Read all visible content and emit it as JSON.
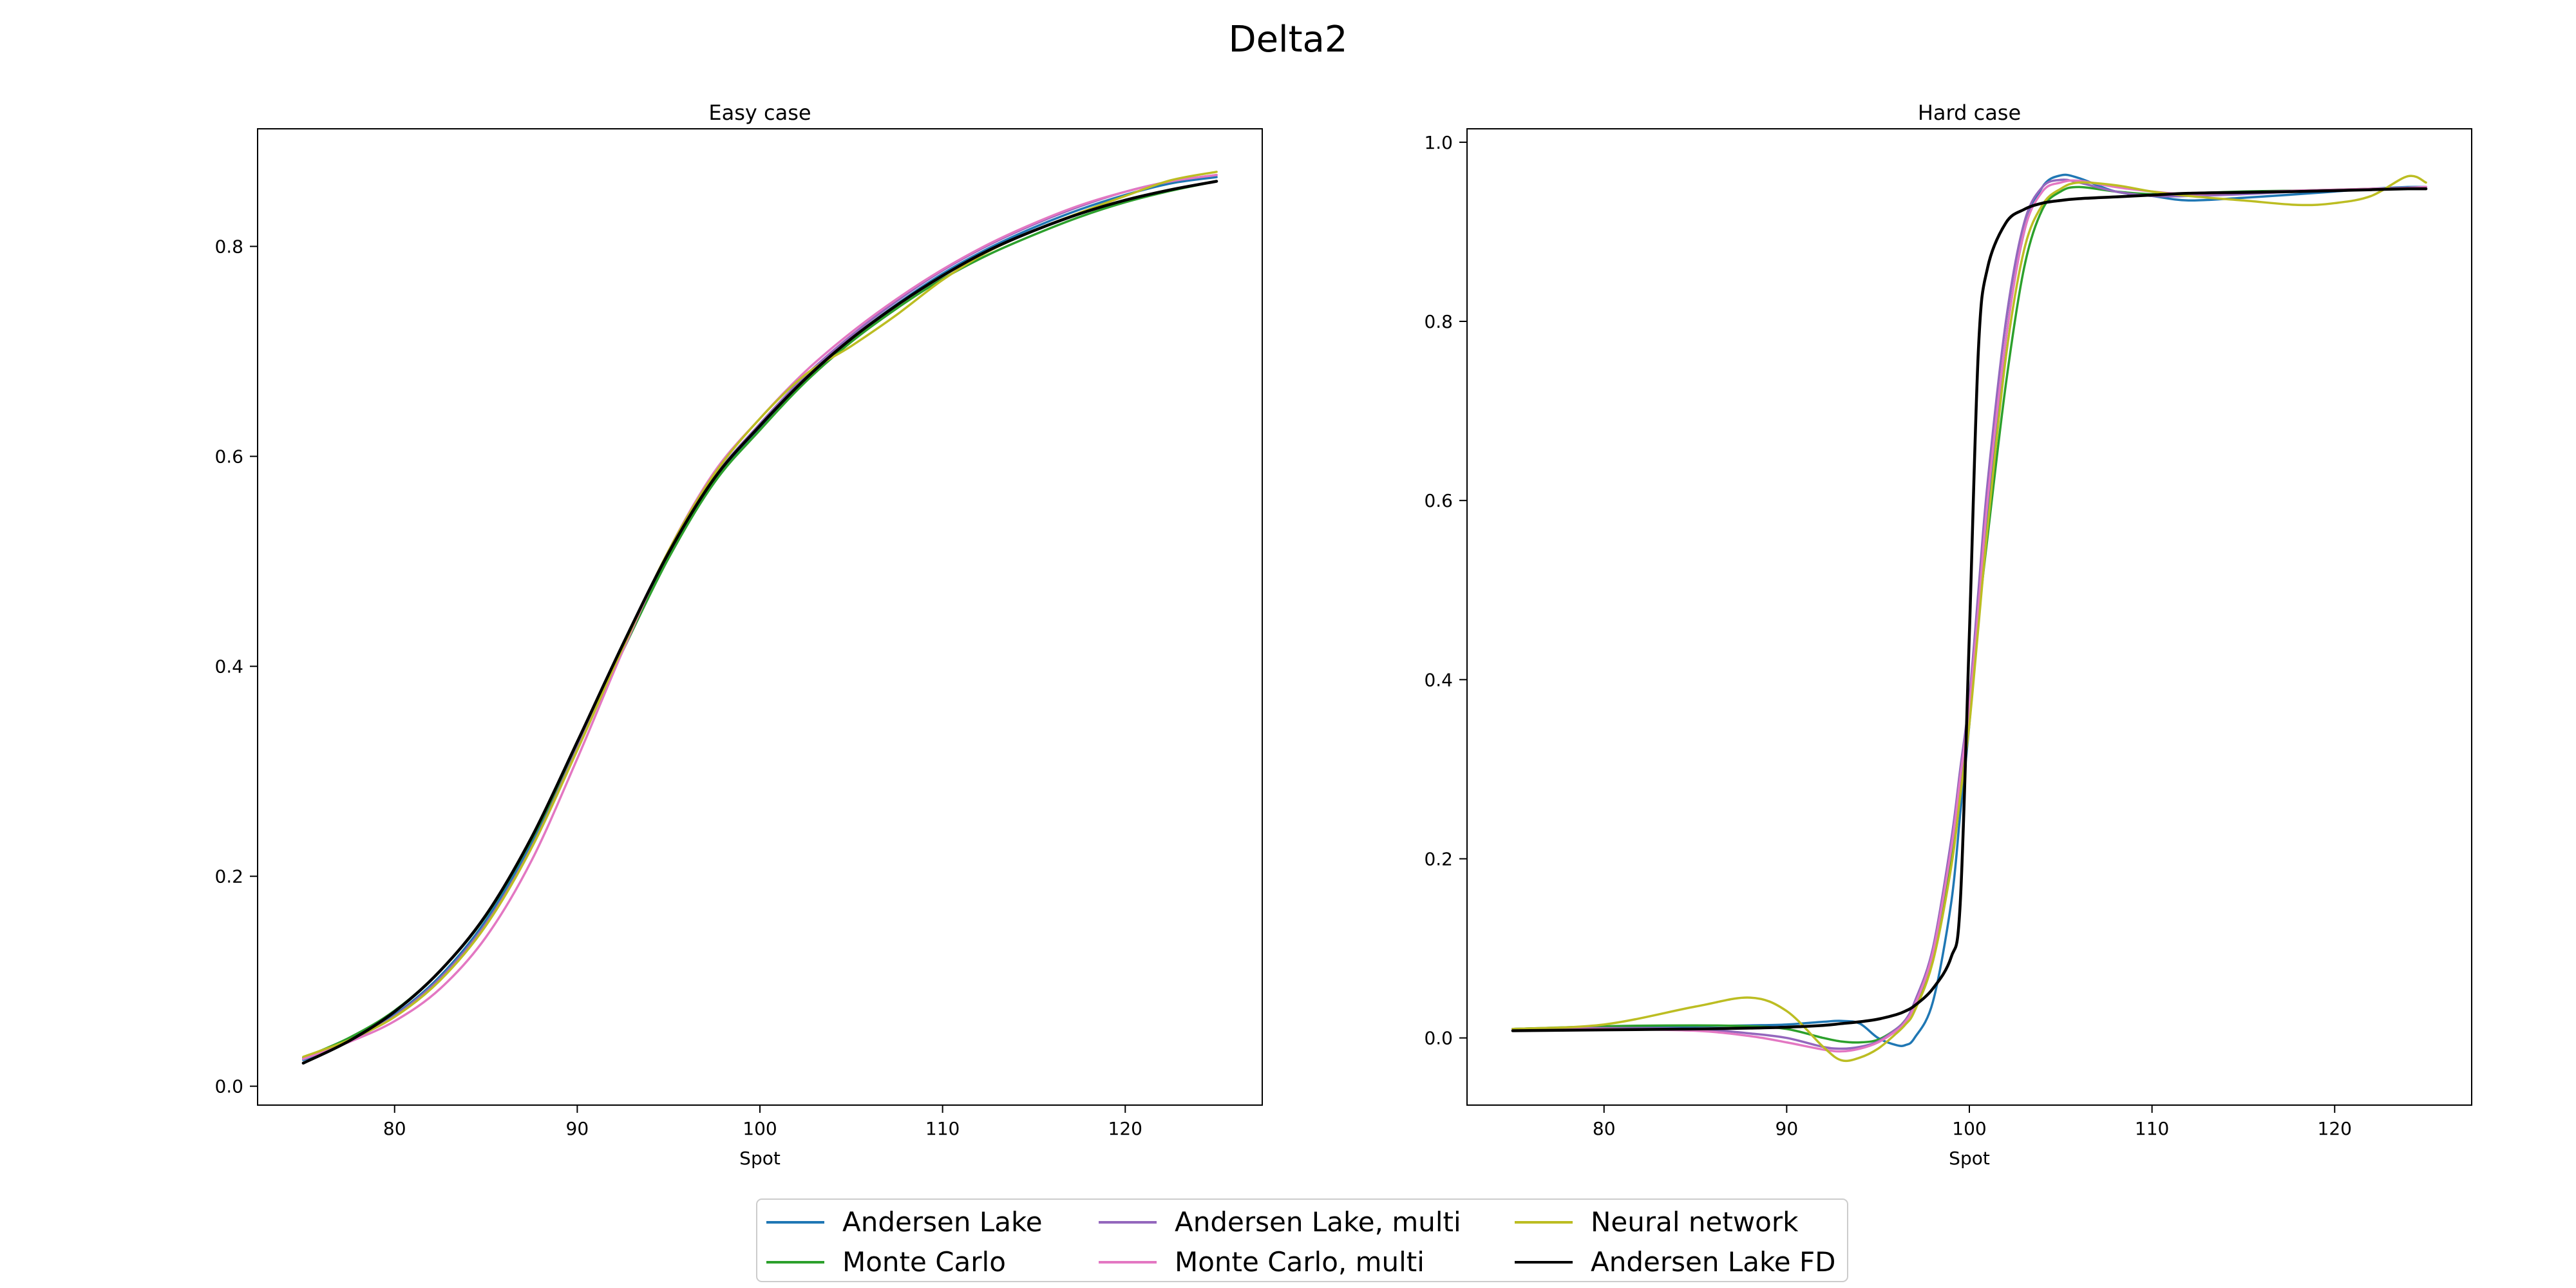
{
  "figure": {
    "suptitle": "Delta2"
  },
  "chart_data": [
    {
      "type": "line",
      "title": "Easy case",
      "xlabel": "Spot",
      "ylabel": "",
      "xlim": [
        72.5,
        127.5
      ],
      "ylim": [
        -0.018,
        0.912
      ],
      "xticks": [
        80,
        90,
        100,
        110,
        120
      ],
      "yticks": [
        0.0,
        0.2,
        0.4,
        0.6,
        0.8
      ],
      "ytick_labels": [
        "0.0",
        "0.2",
        "0.4",
        "0.6",
        "0.8"
      ],
      "x": [
        75,
        77.5,
        80,
        82.5,
        85,
        87.5,
        90,
        92.5,
        95,
        97.5,
        100,
        102.5,
        105,
        107.5,
        110,
        112.5,
        115,
        117.5,
        120,
        122.5,
        125
      ],
      "series": [
        {
          "name": "Andersen Lake",
          "color": "#1f77b4",
          "values": [
            0.025,
            0.043,
            0.068,
            0.105,
            0.158,
            0.232,
            0.325,
            0.418,
            0.505,
            0.575,
            0.627,
            0.674,
            0.712,
            0.745,
            0.774,
            0.798,
            0.818,
            0.835,
            0.849,
            0.86,
            0.866
          ]
        },
        {
          "name": "Monte Carlo",
          "color": "#2ca02c",
          "values": [
            0.027,
            0.046,
            0.072,
            0.11,
            0.162,
            0.235,
            0.323,
            0.415,
            0.503,
            0.575,
            0.625,
            0.671,
            0.709,
            0.741,
            0.769,
            0.792,
            0.811,
            0.828,
            0.842,
            0.853,
            0.862
          ]
        },
        {
          "name": "Andersen Lake, multi",
          "color": "#9467bd",
          "values": [
            0.026,
            0.043,
            0.067,
            0.103,
            0.155,
            0.228,
            0.322,
            0.419,
            0.508,
            0.58,
            0.631,
            0.677,
            0.715,
            0.748,
            0.777,
            0.801,
            0.821,
            0.838,
            0.852,
            0.862,
            0.868
          ]
        },
        {
          "name": "Monte Carlo, multi",
          "color": "#e377c2",
          "values": [
            0.026,
            0.042,
            0.062,
            0.093,
            0.142,
            0.215,
            0.312,
            0.415,
            0.51,
            0.585,
            0.636,
            0.681,
            0.718,
            0.75,
            0.778,
            0.802,
            0.822,
            0.839,
            0.852,
            0.862,
            0.868
          ]
        },
        {
          "name": "Neural network",
          "color": "#bcbd22",
          "values": [
            0.028,
            0.044,
            0.066,
            0.101,
            0.153,
            0.227,
            0.32,
            0.418,
            0.51,
            0.583,
            0.636,
            0.678,
            0.705,
            0.735,
            0.768,
            0.795,
            0.815,
            0.832,
            0.848,
            0.863,
            0.871
          ]
        },
        {
          "name": "Andersen Lake FD",
          "color": "#000000",
          "values": [
            0.022,
            0.043,
            0.071,
            0.11,
            0.163,
            0.237,
            0.328,
            0.421,
            0.508,
            0.579,
            0.629,
            0.674,
            0.712,
            0.744,
            0.772,
            0.796,
            0.815,
            0.831,
            0.844,
            0.854,
            0.862
          ]
        }
      ]
    },
    {
      "type": "line",
      "title": "Hard case",
      "xlabel": "Spot",
      "ylabel": "",
      "xlim": [
        72.5,
        127.5
      ],
      "ylim": [
        -0.075,
        1.015
      ],
      "xticks": [
        80,
        90,
        100,
        110,
        120
      ],
      "yticks": [
        0.0,
        0.2,
        0.4,
        0.6,
        0.8,
        1.0
      ],
      "ytick_labels": [
        "0.0",
        "0.2",
        "0.4",
        "0.6",
        "0.8",
        "1.0"
      ],
      "x": [
        75,
        80,
        85,
        88,
        90,
        92,
        93,
        94,
        95,
        96,
        96.5,
        97,
        98,
        99,
        99.5,
        100,
        100.5,
        101,
        102,
        103,
        104,
        105,
        106,
        108,
        110,
        112,
        115,
        118,
        120,
        122,
        124,
        125
      ],
      "series": [
        {
          "name": "Andersen Lake",
          "color": "#1f77b4",
          "values": [
            0.01,
            0.012,
            0.013,
            0.014,
            0.015,
            0.018,
            0.019,
            0.016,
            0.0,
            -0.008,
            -0.008,
            0.0,
            0.04,
            0.15,
            0.25,
            0.35,
            0.47,
            0.58,
            0.78,
            0.9,
            0.95,
            0.963,
            0.96,
            0.945,
            0.94,
            0.935,
            0.938,
            0.942,
            0.945,
            0.948,
            0.95,
            0.95
          ]
        },
        {
          "name": "Monte Carlo",
          "color": "#2ca02c",
          "values": [
            0.01,
            0.013,
            0.014,
            0.013,
            0.01,
            0.0,
            -0.004,
            -0.005,
            -0.002,
            0.01,
            0.02,
            0.035,
            0.09,
            0.2,
            0.28,
            0.36,
            0.47,
            0.56,
            0.73,
            0.86,
            0.925,
            0.945,
            0.95,
            0.945,
            0.942,
            0.943,
            0.945,
            0.946,
            0.947,
            0.948,
            0.949,
            0.95
          ]
        },
        {
          "name": "Andersen Lake, multi",
          "color": "#9467bd",
          "values": [
            0.01,
            0.011,
            0.01,
            0.005,
            0.0,
            -0.01,
            -0.012,
            -0.01,
            -0.004,
            0.01,
            0.02,
            0.04,
            0.1,
            0.22,
            0.3,
            0.38,
            0.5,
            0.62,
            0.8,
            0.91,
            0.95,
            0.958,
            0.955,
            0.945,
            0.94,
            0.94,
            0.942,
            0.945,
            0.946,
            0.948,
            0.949,
            0.95
          ]
        },
        {
          "name": "Monte Carlo, multi",
          "color": "#e377c2",
          "values": [
            0.01,
            0.01,
            0.008,
            0.002,
            -0.005,
            -0.013,
            -0.015,
            -0.012,
            -0.005,
            0.008,
            0.018,
            0.036,
            0.095,
            0.21,
            0.29,
            0.37,
            0.48,
            0.6,
            0.78,
            0.9,
            0.945,
            0.955,
            0.957,
            0.95,
            0.945,
            0.942,
            0.944,
            0.946,
            0.947,
            0.948,
            0.949,
            0.95
          ]
        },
        {
          "name": "Neural network",
          "color": "#bcbd22",
          "values": [
            0.01,
            0.015,
            0.035,
            0.045,
            0.03,
            -0.01,
            -0.025,
            -0.022,
            -0.012,
            0.005,
            0.015,
            0.03,
            0.085,
            0.19,
            0.27,
            0.35,
            0.46,
            0.57,
            0.76,
            0.88,
            0.93,
            0.948,
            0.955,
            0.952,
            0.945,
            0.94,
            0.935,
            0.93,
            0.932,
            0.94,
            0.962,
            0.955
          ]
        },
        {
          "name": "Andersen Lake FD",
          "color": "#000000",
          "values": [
            0.008,
            0.009,
            0.01,
            0.011,
            0.012,
            0.014,
            0.016,
            0.018,
            0.021,
            0.026,
            0.03,
            0.036,
            0.055,
            0.09,
            0.15,
            0.45,
            0.77,
            0.86,
            0.91,
            0.925,
            0.932,
            0.935,
            0.937,
            0.939,
            0.941,
            0.943,
            0.944,
            0.945,
            0.946,
            0.947,
            0.948,
            0.948
          ]
        }
      ]
    }
  ],
  "legend": {
    "placement": "bottom-center",
    "entries": [
      {
        "label": "Andersen Lake",
        "color": "#1f77b4"
      },
      {
        "label": "Monte Carlo",
        "color": "#2ca02c"
      },
      {
        "label": "Andersen Lake, multi",
        "color": "#9467bd"
      },
      {
        "label": "Monte Carlo, multi",
        "color": "#e377c2"
      },
      {
        "label": "Neural network",
        "color": "#bcbd22"
      },
      {
        "label": "Andersen Lake FD",
        "color": "#000000"
      }
    ]
  }
}
